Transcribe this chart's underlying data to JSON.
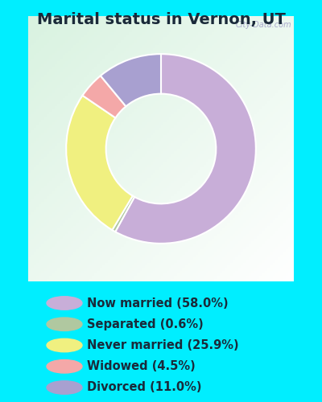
{
  "title": "Marital status in Vernon, UT",
  "title_fontsize": 14,
  "title_fontweight": "bold",
  "bg_outer": "#00eeff",
  "bg_chart_colors": [
    "#d4ede4",
    "#e8f5e9",
    "#f0f8f0",
    "#ffffff"
  ],
  "watermark": "City-Data.com",
  "slices": [
    {
      "label": "Now married (58.0%)",
      "value": 58.0,
      "color": "#c8aed8"
    },
    {
      "label": "Separated (0.6%)",
      "value": 0.6,
      "color": "#b0c8a0"
    },
    {
      "label": "Never married (25.9%)",
      "value": 25.9,
      "color": "#f0f080"
    },
    {
      "label": "Widowed (4.5%)",
      "value": 4.5,
      "color": "#f4a8a8"
    },
    {
      "label": "Divorced (11.0%)",
      "value": 11.0,
      "color": "#a8a0d0"
    }
  ],
  "legend_fontsize": 10.5,
  "donut_width": 0.42,
  "legend_marker_colors": [
    "#c8aed8",
    "#b0c8a0",
    "#f0f080",
    "#f4a8a8",
    "#a8a0d0"
  ],
  "text_color": "#1a2a3a"
}
